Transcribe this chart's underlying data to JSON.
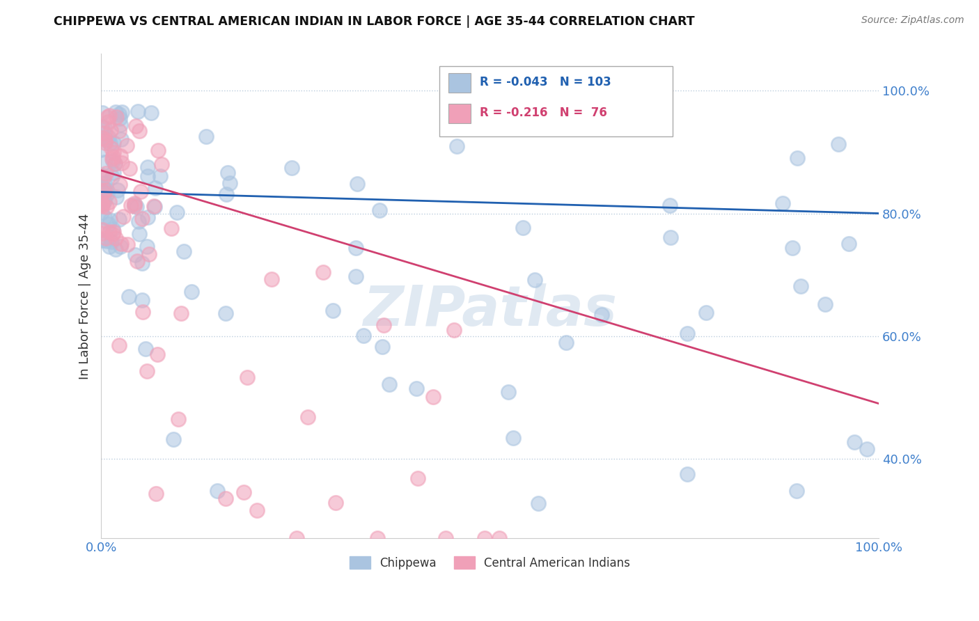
{
  "title": "CHIPPEWA VS CENTRAL AMERICAN INDIAN IN LABOR FORCE | AGE 35-44 CORRELATION CHART",
  "source": "Source: ZipAtlas.com",
  "ylabel": "In Labor Force | Age 35-44",
  "xlim": [
    0.0,
    1.0
  ],
  "ylim": [
    0.27,
    1.06
  ],
  "yticks": [
    0.4,
    0.6,
    0.8,
    1.0
  ],
  "ytick_labels": [
    "40.0%",
    "60.0%",
    "80.0%",
    "100.0%"
  ],
  "xticks": [
    0.0,
    0.25,
    0.5,
    0.75,
    1.0
  ],
  "xtick_labels": [
    "0.0%",
    "",
    "",
    "",
    "100.0%"
  ],
  "legend_labels": [
    "Chippewa",
    "Central American Indians"
  ],
  "R_chippewa": -0.043,
  "N_chippewa": 103,
  "R_central": -0.216,
  "N_central": 76,
  "chippewa_color": "#aac4e0",
  "central_color": "#f0a0b8",
  "chippewa_line_color": "#2060b0",
  "central_line_color": "#d04070",
  "watermark": "ZIPatlas",
  "background_color": "#ffffff",
  "chip_line_y0": 0.835,
  "chip_line_y1": 0.8,
  "cent_line_y0": 0.87,
  "cent_line_y1": 0.49
}
